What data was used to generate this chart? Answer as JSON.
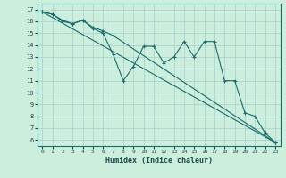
{
  "xlabel": "Humidex (Indice chaleur)",
  "bg_color": "#cceedd",
  "grid_color": "#aacccc",
  "line_color": "#1a6b6b",
  "xlim": [
    -0.5,
    23.5
  ],
  "ylim": [
    5.5,
    17.5
  ],
  "xticks": [
    0,
    1,
    2,
    3,
    4,
    5,
    6,
    7,
    8,
    9,
    10,
    11,
    12,
    13,
    14,
    15,
    16,
    17,
    18,
    19,
    20,
    21,
    22,
    23
  ],
  "yticks": [
    6,
    7,
    8,
    9,
    10,
    11,
    12,
    13,
    14,
    15,
    16,
    17
  ],
  "line1_x": [
    0,
    1,
    2,
    3,
    4,
    5,
    6,
    7,
    8,
    9,
    10,
    11,
    12,
    13,
    14,
    15,
    16,
    17,
    18,
    19,
    20,
    21,
    22,
    23
  ],
  "line1_y": [
    16.8,
    16.6,
    16.0,
    15.8,
    16.1,
    15.4,
    15.0,
    13.2,
    11.0,
    12.2,
    13.9,
    13.9,
    12.5,
    13.0,
    14.3,
    13.0,
    14.3,
    14.3,
    11.0,
    11.0,
    8.3,
    8.0,
    6.6,
    5.8
  ],
  "line2_x": [
    0,
    1,
    2,
    3,
    4,
    5,
    6,
    7,
    23
  ],
  "line2_y": [
    16.8,
    16.6,
    16.1,
    15.8,
    16.1,
    15.5,
    15.2,
    14.8,
    5.8
  ],
  "line3_x": [
    0,
    23
  ],
  "line3_y": [
    16.8,
    5.8
  ]
}
